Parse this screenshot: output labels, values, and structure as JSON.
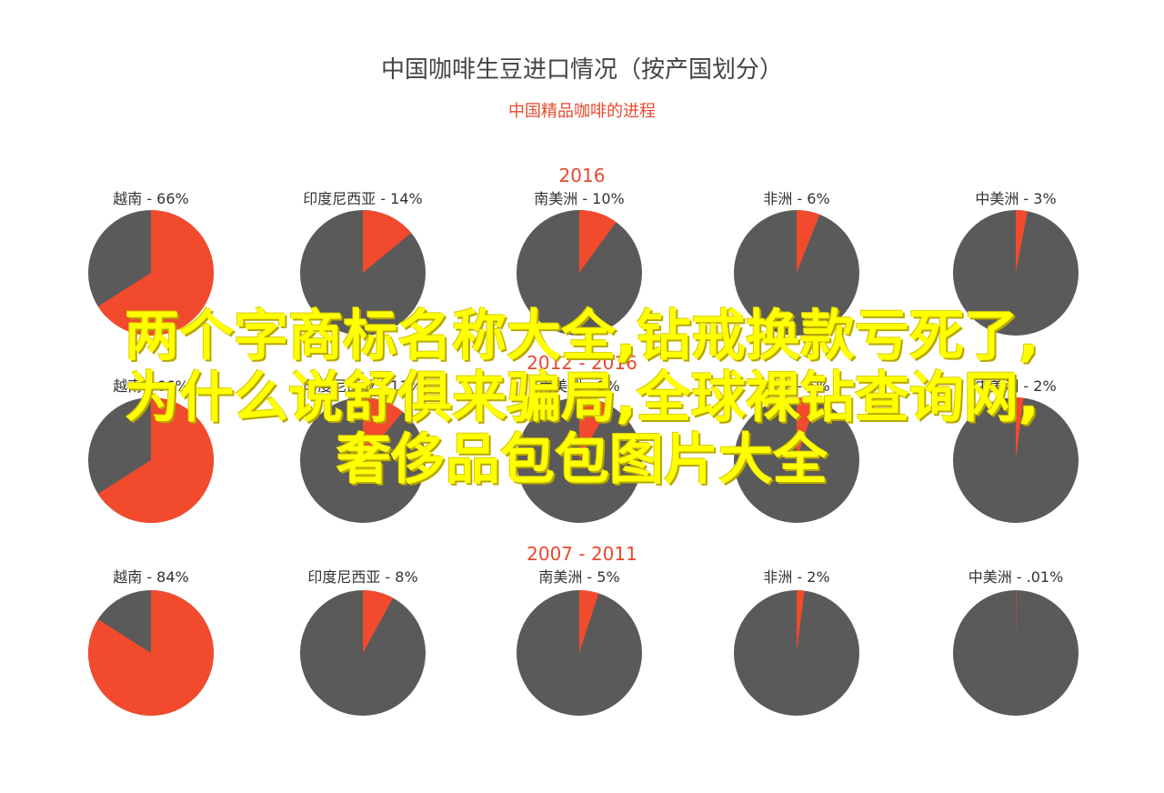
{
  "title": "中国咖啡生豆进口情况（按产国划分）",
  "subtitle": "中国精品咖啡的进程",
  "colors": {
    "highlight": "#f24a2d",
    "rest": "#5a5a5a"
  },
  "chart_data": [
    {
      "type": "pie",
      "title": "2016",
      "slices": [
        {
          "label": "越南 - 66%",
          "value": 66
        },
        {
          "label": "印度尼西亚 - 14%",
          "value": 14
        },
        {
          "label": "南美洲 - 10%",
          "value": 10
        },
        {
          "label": "非洲 - 6%",
          "value": 6
        },
        {
          "label": "中美洲 - 3%",
          "value": 3
        }
      ]
    },
    {
      "type": "pie",
      "title": "2012 - 2016",
      "slices": [
        {
          "label": "越南 - 66%",
          "value": 66
        },
        {
          "label": "印度尼西亚 - 11%",
          "value": 11
        },
        {
          "label": "南美洲 - 8%",
          "value": 8
        },
        {
          "label": "非洲 - 5%",
          "value": 5
        },
        {
          "label": "中美洲 - 2%",
          "value": 2
        }
      ]
    },
    {
      "type": "pie",
      "title": "2007 - 2011",
      "slices": [
        {
          "label": "越南 - 84%",
          "value": 84
        },
        {
          "label": "印度尼西亚 - 8%",
          "value": 8
        },
        {
          "label": "南美洲 - 5%",
          "value": 5
        },
        {
          "label": "非洲 - 2%",
          "value": 2
        },
        {
          "label": "中美洲 - .01%",
          "value": 0.01
        }
      ]
    }
  ],
  "overlay_lines": [
    "两个字商标名称大全,钻戒换款亏死了,",
    "为什么说舒俱来骗局,全球裸钻查询网,",
    "奢侈品包包图片大全"
  ]
}
